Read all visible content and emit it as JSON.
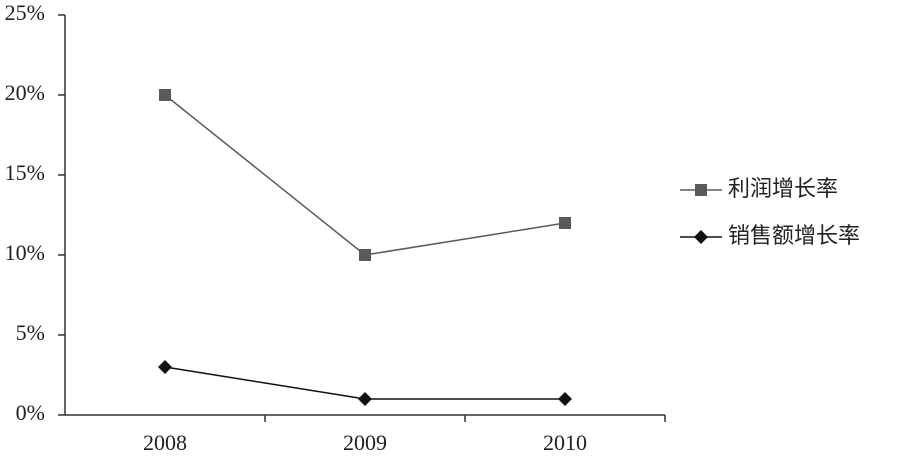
{
  "chart_data": {
    "type": "line",
    "categories": [
      "2008",
      "2009",
      "2010"
    ],
    "series": [
      {
        "name": "利润增长率",
        "color": "#5a5a5a",
        "marker": "square",
        "values": [
          20,
          10,
          12
        ]
      },
      {
        "name": "销售额增长率",
        "color": "#111111",
        "marker": "diamond",
        "values": [
          3,
          1,
          1
        ]
      }
    ],
    "ylim": [
      0,
      25
    ],
    "yticks": [
      {
        "value": 0,
        "label": "0%"
      },
      {
        "value": 5,
        "label": "5%"
      },
      {
        "value": 10,
        "label": "10%"
      },
      {
        "value": 15,
        "label": "15%"
      },
      {
        "value": 20,
        "label": "20%"
      },
      {
        "value": 25,
        "label": "25%"
      }
    ],
    "legend": "right"
  }
}
